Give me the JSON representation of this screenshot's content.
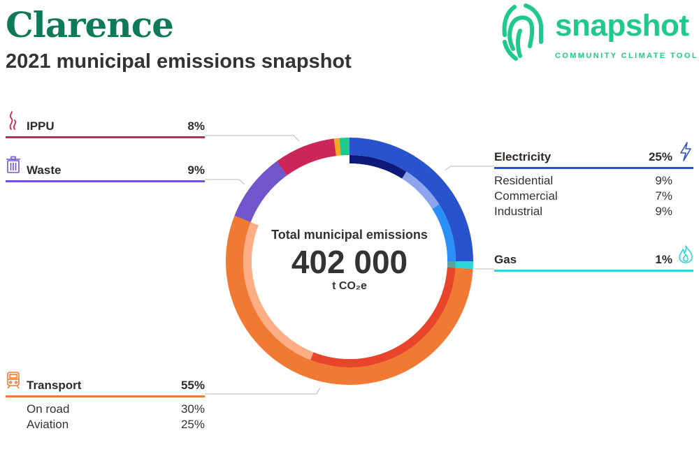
{
  "header": {
    "title": "Clarence",
    "subtitle": "2021 municipal emissions snapshot"
  },
  "logo": {
    "word": "snapshot",
    "tagline": "COMMUNITY CLIMATE TOOL",
    "color": "#1fc98b"
  },
  "center": {
    "label": "Total municipal emissions",
    "value": "402 000",
    "unit": "t CO₂e"
  },
  "categories": {
    "ippu": {
      "name": "IPPU",
      "pct": "8%",
      "color": "#cc2557",
      "icon": "smoke-icon"
    },
    "waste": {
      "name": "Waste",
      "pct": "9%",
      "color": "#7155cd",
      "icon": "trash-bin-icon"
    },
    "transport": {
      "name": "Transport",
      "pct": "55%",
      "color": "#f07a34",
      "icon": "train-icon",
      "subs": [
        {
          "name": "On road",
          "pct": "30%"
        },
        {
          "name": "Aviation",
          "pct": "25%"
        }
      ]
    },
    "electricity": {
      "name": "Electricity",
      "pct": "25%",
      "color": "#2953cc",
      "icon": "lightning-icon",
      "subs": [
        {
          "name": "Residential",
          "pct": "9%"
        },
        {
          "name": "Commercial",
          "pct": "7%"
        },
        {
          "name": "Industrial",
          "pct": "9%"
        }
      ]
    },
    "gas": {
      "name": "Gas",
      "pct": "1%",
      "color": "#2dd4d8",
      "icon": "flame-icon"
    }
  },
  "chart_data": {
    "type": "pie",
    "total": 402000,
    "unit": "t CO2e",
    "outer_ring": [
      {
        "name": "Electricity",
        "value": 25,
        "color": "#2953cc"
      },
      {
        "name": "Gas",
        "value": 1,
        "color": "#2dd4d8"
      },
      {
        "name": "Transport",
        "value": 55,
        "color": "#f07a34"
      },
      {
        "name": "Waste",
        "value": 9,
        "color": "#7155cd"
      },
      {
        "name": "IPPU",
        "value": 8,
        "color": "#cc2557"
      },
      {
        "name": "",
        "value": 0.7,
        "color": "#f5a623"
      },
      {
        "name": "",
        "value": 1.3,
        "color": "#1fc98b"
      }
    ],
    "inner_ring": [
      {
        "name": "Residential",
        "value": 9,
        "color": "#0d1a7a"
      },
      {
        "name": "Commercial",
        "value": 7,
        "color": "#8ea4ee"
      },
      {
        "name": "Industrial",
        "value": 9,
        "color": "#2b8ff5"
      },
      {
        "name": "Gas",
        "value": 1,
        "color": "#5aa2a0"
      },
      {
        "name": "On road",
        "value": 30,
        "color": "#e8452a"
      },
      {
        "name": "Aviation",
        "value": 25,
        "color": "#ffad85"
      },
      {
        "name": "",
        "value": 19,
        "color": "none"
      }
    ]
  }
}
